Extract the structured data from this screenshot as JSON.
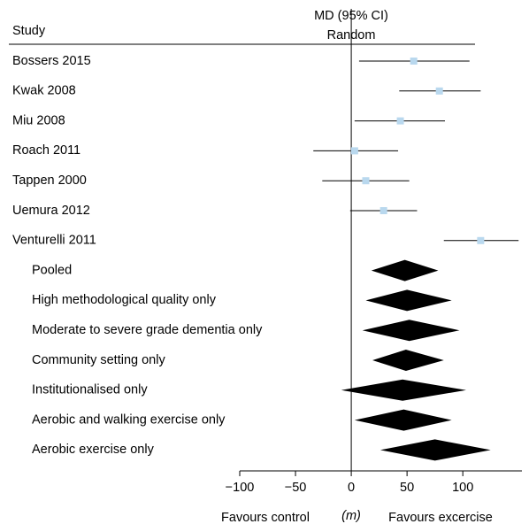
{
  "chart_data": {
    "type": "forest",
    "study_header": "Study",
    "effect_header": "MD (95% CI)",
    "model_label": "Random",
    "studies": {
      "names": [
        "Bossers 2015",
        "Kwak 2008",
        "Miu 2008",
        "Roach 2011",
        "Tappen 2000",
        "Uemura 2012",
        "Venturelli 2011"
      ],
      "values": [
        56,
        79,
        44,
        3,
        13,
        29,
        116
      ],
      "lower": [
        7,
        43,
        3,
        -34,
        -26,
        -1,
        83
      ],
      "upper": [
        106,
        116,
        84,
        42,
        52,
        59,
        150
      ],
      "color": "#b9d8ee"
    },
    "pooled": {
      "names": [
        "Pooled",
        "High methodological quality only",
        "Moderate to severe grade dementia only",
        "Community setting only",
        "Institutionalised only",
        "Aerobic and walking exercise only",
        "Aerobic exercise only"
      ],
      "values": [
        48,
        50,
        52,
        49,
        46,
        47,
        75
      ],
      "lower": [
        18,
        13,
        10,
        19,
        -9,
        3,
        26
      ],
      "upper": [
        78,
        90,
        97,
        83,
        103,
        90,
        125
      ],
      "color": "#000000"
    },
    "xlim": [
      -100,
      153
    ],
    "xticks": [
      {
        "value": -100,
        "label": "−100"
      },
      {
        "value": -50,
        "label": "−50"
      },
      0,
      50,
      100
    ],
    "x_label_left": "Favours control",
    "x_label_mid": "(m)",
    "x_label_right": "Favours excercise"
  }
}
